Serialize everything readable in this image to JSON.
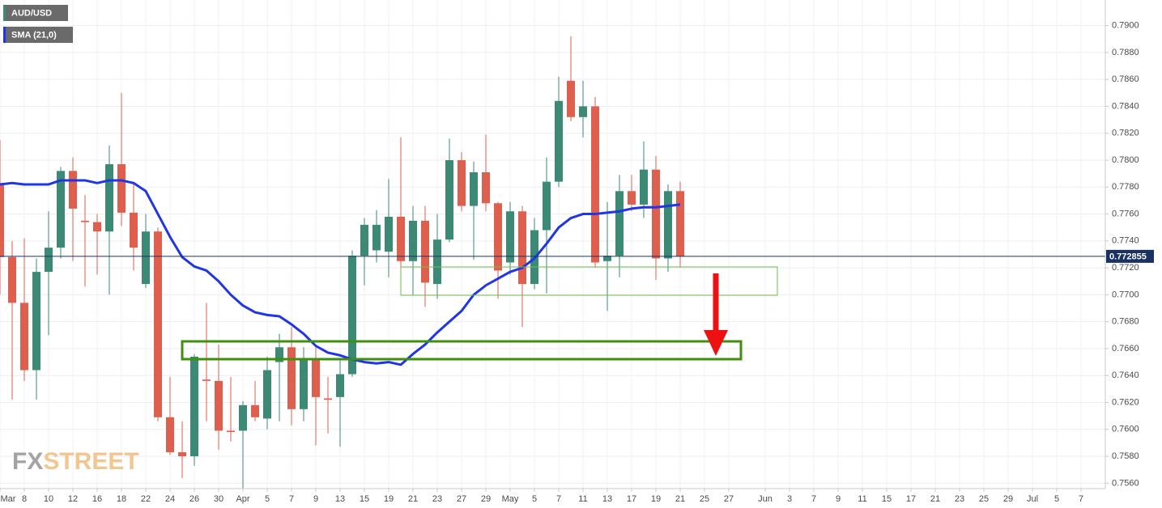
{
  "chart_data": {
    "type": "candlestick",
    "watermark": {
      "left": "FX",
      "right": "STREET"
    },
    "categories": [
      "Mar",
      null,
      "8",
      null,
      "10",
      null,
      "12",
      null,
      "16",
      null,
      "18",
      null,
      "22",
      null,
      "24",
      null,
      "26",
      null,
      "30",
      null,
      "Apr",
      null,
      "5",
      null,
      "7",
      null,
      "9",
      null,
      "13",
      null,
      "15",
      null,
      "19",
      null,
      "21",
      null,
      "23",
      null,
      "27",
      null,
      "29",
      null,
      "May",
      null,
      "5",
      null,
      "7",
      null,
      "11",
      null,
      "13",
      null,
      "17",
      null,
      "19",
      null,
      "21",
      null,
      "25",
      null,
      "27",
      null,
      null,
      "Jun",
      null,
      "3",
      null,
      "7",
      null,
      "9",
      null,
      "11",
      null,
      "15",
      null,
      "17",
      null,
      "21",
      null,
      "23",
      null,
      "25",
      null,
      "29",
      null,
      "Jul",
      null,
      "5",
      null,
      "7",
      null
    ],
    "series": [
      {
        "name": "AUD/USD",
        "type": "candlestick",
        "up_color": "#3c8a75",
        "down_color": "#df5f4e",
        "open": [
          0.7783,
          0.7728,
          0.7694,
          0.7644,
          0.7717,
          0.7735,
          0.7792,
          0.7755,
          0.7754,
          0.7747,
          0.7797,
          0.7761,
          0.7708,
          0.7747,
          0.7609,
          0.7583,
          0.758,
          0.7637,
          0.7636,
          0.7599,
          0.7599,
          0.7618,
          0.7608,
          0.765,
          0.7661,
          0.7615,
          0.7653,
          0.7623,
          0.7624,
          0.7641,
          0.7729,
          0.7733,
          0.7732,
          0.7758,
          0.7725,
          0.7755,
          0.7708,
          0.7741,
          0.78,
          0.7766,
          0.7791,
          0.7768,
          0.7724,
          0.7762,
          0.7708,
          0.7748,
          0.7784,
          0.7859,
          0.7832,
          0.784,
          0.7725,
          0.7729,
          0.7777,
          0.7767,
          0.7793,
          0.7727,
          0.7777,
          null,
          null,
          null,
          null,
          null,
          null,
          null,
          null,
          null,
          null,
          null,
          null,
          null,
          null,
          null,
          null,
          null,
          null,
          null,
          null,
          null,
          null,
          null,
          null,
          null,
          null,
          null,
          null,
          null,
          null,
          null,
          null,
          null,
          null
        ],
        "high": [
          0.7815,
          0.774,
          0.7742,
          0.7727,
          0.7762,
          0.7795,
          0.7802,
          0.7774,
          0.776,
          0.7811,
          0.785,
          0.7784,
          0.776,
          0.775,
          0.7639,
          0.7606,
          0.7656,
          0.7694,
          0.7663,
          0.7639,
          0.7621,
          0.7636,
          0.7654,
          0.7671,
          0.7676,
          0.7661,
          0.7663,
          0.7639,
          0.7653,
          0.7733,
          0.7757,
          0.7763,
          0.7786,
          0.7817,
          0.7766,
          0.7766,
          0.776,
          0.7816,
          0.7806,
          0.7799,
          0.7819,
          0.7769,
          0.7769,
          0.7766,
          0.7757,
          0.7802,
          0.7862,
          0.7892,
          0.7859,
          0.7847,
          0.7769,
          0.7789,
          0.7789,
          0.7814,
          0.7803,
          0.7782,
          0.7784,
          null,
          null,
          null,
          null,
          null,
          null,
          null,
          null,
          null,
          null,
          null,
          null,
          null,
          null,
          null,
          null,
          null,
          null,
          null,
          null,
          null,
          null,
          null,
          null,
          null,
          null,
          null,
          null,
          null,
          null,
          null,
          null,
          null,
          null
        ],
        "low": [
          0.77,
          0.7622,
          0.7636,
          0.7622,
          0.767,
          0.7727,
          0.7725,
          0.7706,
          0.7715,
          0.77,
          0.7751,
          0.7718,
          0.7705,
          0.7606,
          0.7581,
          0.7564,
          0.7573,
          0.7606,
          0.7585,
          0.7591,
          0.7555,
          0.7606,
          0.76,
          0.7606,
          0.7603,
          0.7606,
          0.7588,
          0.7597,
          0.7587,
          0.7639,
          0.7707,
          0.7724,
          0.7713,
          0.772,
          0.77,
          0.7691,
          0.7697,
          0.7739,
          0.7762,
          0.7726,
          0.7762,
          0.7697,
          0.7715,
          0.7676,
          0.7704,
          0.7701,
          0.778,
          0.7829,
          0.7817,
          0.772,
          0.7688,
          0.7713,
          0.7762,
          0.7757,
          0.7711,
          0.7717,
          0.772,
          null,
          null,
          null,
          null,
          null,
          null,
          null,
          null,
          null,
          null,
          null,
          null,
          null,
          null,
          null,
          null,
          null,
          null,
          null,
          null,
          null,
          null,
          null,
          null,
          null,
          null,
          null,
          null,
          null,
          null,
          null,
          null,
          null,
          null
        ],
        "close": [
          0.7728,
          0.7694,
          0.7644,
          0.7717,
          0.7735,
          0.7792,
          0.7764,
          0.7754,
          0.7747,
          0.7797,
          0.7761,
          0.7735,
          0.7747,
          0.7609,
          0.7583,
          0.758,
          0.7654,
          0.7636,
          0.7599,
          0.7598,
          0.7618,
          0.7609,
          0.7644,
          0.7661,
          0.7615,
          0.7653,
          0.7624,
          0.7622,
          0.7641,
          0.7729,
          0.7752,
          0.7752,
          0.7758,
          0.7725,
          0.7755,
          0.7709,
          0.7741,
          0.78,
          0.7766,
          0.7791,
          0.7768,
          0.7718,
          0.7762,
          0.7708,
          0.7748,
          0.7784,
          0.7844,
          0.7832,
          0.784,
          0.7724,
          0.7729,
          0.7777,
          0.7767,
          0.7793,
          0.7727,
          0.7777,
          0.772855,
          null,
          null,
          null,
          null,
          null,
          null,
          null,
          null,
          null,
          null,
          null,
          null,
          null,
          null,
          null,
          null,
          null,
          null,
          null,
          null,
          null,
          null,
          null,
          null,
          null,
          null,
          null,
          null,
          null,
          null,
          null,
          null,
          null,
          null
        ]
      },
      {
        "name": "SMA (21,0)",
        "type": "line",
        "color": "#1f35e6",
        "values": [
          0.7782,
          0.7783,
          0.7782,
          0.7782,
          0.7782,
          0.7785,
          0.7785,
          0.7785,
          0.7783,
          0.7785,
          0.7785,
          0.7783,
          0.7777,
          0.776,
          0.7743,
          0.7728,
          0.7721,
          0.7718,
          0.771,
          0.77,
          0.7692,
          0.7687,
          0.7685,
          0.7684,
          0.7678,
          0.7671,
          0.7662,
          0.7657,
          0.7655,
          0.7652,
          0.765,
          0.7649,
          0.765,
          0.7648,
          0.7656,
          0.7663,
          0.7672,
          0.768,
          0.7688,
          0.77,
          0.7707,
          0.7712,
          0.7717,
          0.772,
          0.7727,
          0.7738,
          0.775,
          0.7757,
          0.776,
          0.776,
          0.7761,
          0.7762,
          0.7764,
          0.7765,
          0.7765,
          0.7766,
          0.7767,
          null,
          null,
          null,
          null,
          null,
          null,
          null,
          null,
          null,
          null,
          null,
          null,
          null,
          null,
          null,
          null,
          null,
          null,
          null,
          null,
          null,
          null,
          null,
          null,
          null,
          null,
          null,
          null,
          null,
          null,
          null,
          null,
          null,
          null
        ]
      }
    ],
    "last_price": 0.772855,
    "ylim": [
      0.7556,
      0.7919
    ],
    "yticks": [
      {
        "value": 0.756,
        "label": "0.7560"
      },
      {
        "value": 0.758,
        "label": "0.7580"
      },
      {
        "value": 0.76,
        "label": "0.7600"
      },
      {
        "value": 0.762,
        "label": "0.7620"
      },
      {
        "value": 0.764,
        "label": "0.7640"
      },
      {
        "value": 0.766,
        "label": "0.7660"
      },
      {
        "value": 0.768,
        "label": "0.7680"
      },
      {
        "value": 0.77,
        "label": "0.7700"
      },
      {
        "value": 0.772,
        "label": "0.7720"
      },
      {
        "value": 0.774,
        "label": "0.7740"
      },
      {
        "value": 0.776,
        "label": "0.7760"
      },
      {
        "value": 0.778,
        "label": "0.7780"
      },
      {
        "value": 0.78,
        "label": "0.7800"
      },
      {
        "value": 0.782,
        "label": "0.7820"
      },
      {
        "value": 0.784,
        "label": "0.7840"
      },
      {
        "value": 0.786,
        "label": "0.7860"
      },
      {
        "value": 0.788,
        "label": "0.7880"
      },
      {
        "value": 0.79,
        "label": "0.7900"
      }
    ],
    "grid": true
  }
}
